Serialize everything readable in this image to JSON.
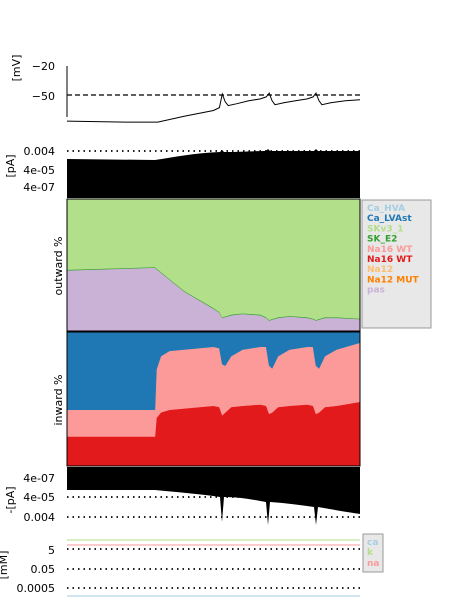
{
  "chart_data": [
    {
      "type": "line",
      "panel": "membrane-voltage",
      "ylabel": "[mV]",
      "yticks": [
        "−20",
        "−50"
      ],
      "threshold_line_mV": -50,
      "series": [
        {
          "x": [
            0,
            0.2,
            0.31,
            0.4,
            0.5,
            0.52,
            0.53,
            0.54,
            0.55,
            0.58,
            0.62,
            0.66,
            0.68,
            0.69,
            0.7,
            0.71,
            0.74,
            0.78,
            0.82,
            0.84,
            0.85,
            0.86,
            0.87,
            0.9,
            0.95,
            1.0
          ],
          "y": [
            -77,
            -78,
            -78,
            -72,
            -66,
            -63,
            -49,
            -57,
            -61,
            -59,
            -56,
            -54,
            -52,
            -48,
            -56,
            -60,
            -58,
            -56,
            -54,
            -52,
            -48,
            -56,
            -60,
            -58,
            -56,
            -55
          ]
        }
      ]
    },
    {
      "type": "area",
      "panel": "outward-current-shares",
      "ylabel": "outward %",
      "ylim": [
        0,
        100
      ],
      "x": [
        0,
        0.3,
        0.4,
        0.5,
        0.52,
        0.53,
        0.56,
        0.6,
        0.66,
        0.68,
        0.69,
        0.72,
        0.76,
        0.82,
        0.84,
        0.85,
        0.88,
        0.92,
        1.0
      ],
      "series": [
        {
          "name": "pas",
          "color": "#cab2d6",
          "values": [
            46,
            48,
            30,
            17,
            14,
            10,
            12,
            13,
            12,
            10,
            8,
            10,
            11,
            10,
            9,
            8,
            10,
            10,
            9
          ]
        },
        {
          "name": "SK_E2",
          "color": "#33a02c",
          "values": [
            0.5,
            0.5,
            0.5,
            0.5,
            0.5,
            0.5,
            0.5,
            0.5,
            0.5,
            0.5,
            0.5,
            0.5,
            0.5,
            0.5,
            0.5,
            0.5,
            0.5,
            0.5,
            0.5
          ]
        },
        {
          "name": "SKv3_1",
          "color": "#b2df8a",
          "values": [
            53.5,
            51.5,
            69.5,
            82.5,
            85.5,
            89.5,
            87.5,
            86.5,
            87.5,
            89.5,
            91.5,
            89.5,
            88.5,
            89.5,
            90.5,
            91.5,
            89.5,
            89.5,
            90.5
          ]
        }
      ]
    },
    {
      "type": "area",
      "panel": "inward-current-shares",
      "ylabel": "inward %",
      "ylim": [
        0,
        100
      ],
      "x": [
        0,
        0.3,
        0.305,
        0.32,
        0.35,
        0.5,
        0.52,
        0.53,
        0.54,
        0.56,
        0.6,
        0.66,
        0.68,
        0.69,
        0.7,
        0.72,
        0.76,
        0.82,
        0.84,
        0.85,
        0.86,
        0.88,
        0.92,
        1.0
      ],
      "series": [
        {
          "name": "Na16 WT",
          "color": "#e31a1c",
          "values": [
            22,
            22,
            36,
            40,
            42,
            45,
            44,
            38,
            40,
            44,
            45,
            46,
            45,
            39,
            40,
            44,
            45,
            46,
            45,
            39,
            40,
            44,
            45,
            48
          ]
        },
        {
          "name": "Na16 WT",
          "color": "#fb9a99",
          "values": [
            20,
            20,
            36,
            42,
            44,
            44,
            44,
            38,
            35,
            38,
            42,
            43,
            44,
            36,
            33,
            38,
            42,
            43,
            44,
            36,
            33,
            38,
            42,
            44
          ]
        },
        {
          "name": "Ca_LVAst",
          "color": "#1f78b4",
          "values": [
            58,
            58,
            28,
            18,
            14,
            11,
            12,
            24,
            25,
            18,
            13,
            11,
            11,
            25,
            27,
            18,
            13,
            11,
            11,
            25,
            27,
            18,
            13,
            8
          ]
        }
      ]
    },
    {
      "type": "line",
      "panel": "current-magnitudes",
      "yticks_top": [
        "0.004",
        "4e-05",
        "4e-07"
      ],
      "ylabel_top": "[pA]",
      "yticks_bottom": [
        "4e-07",
        "4e-05",
        "0.004"
      ],
      "ylabel_bottom": "-[pA]"
    },
    {
      "type": "line",
      "panel": "concentrations",
      "ylabel": "[mM]",
      "yticks": [
        "5",
        "0.05",
        "0.0005"
      ],
      "legend": [
        "ca",
        "k",
        "na"
      ],
      "legend_colors": [
        "#a6cee3",
        "#b2df8a",
        "#fb9a99"
      ]
    }
  ],
  "legend": {
    "entries": [
      {
        "label": "Ca_HVA",
        "color": "#a6cee3"
      },
      {
        "label": "Ca_LVAst",
        "color": "#1f78b4"
      },
      {
        "label": "SKv3_1",
        "color": "#b2df8a"
      },
      {
        "label": "SK_E2",
        "color": "#33a02c"
      },
      {
        "label": "Na16 WT",
        "color": "#fb9a99"
      },
      {
        "label": "Na16 WT",
        "color": "#e31a1c"
      },
      {
        "label": "Na12",
        "color": "#fdbf6f"
      },
      {
        "label": "Na12 MUT",
        "color": "#ff7f00"
      },
      {
        "label": "pas",
        "color": "#cab2d6"
      }
    ]
  }
}
